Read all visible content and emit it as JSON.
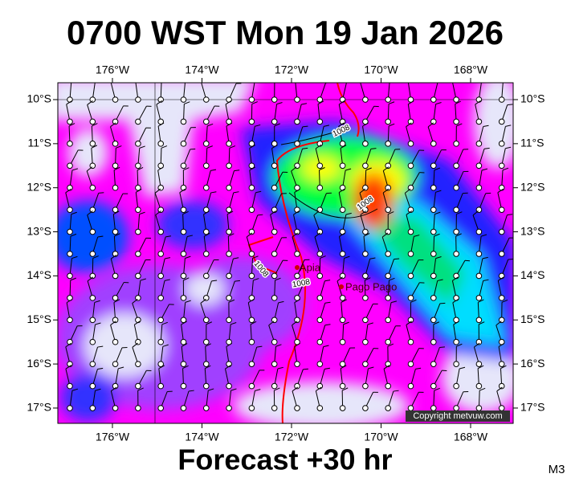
{
  "header": {
    "title": "0700 WST Mon 19 Jan 2026"
  },
  "footer": {
    "forecast": "Forecast +30 hr",
    "model": "M3"
  },
  "map": {
    "lon_labels": [
      "176°W",
      "174°W",
      "172°W",
      "170°W",
      "168°W"
    ],
    "lat_labels": [
      "10°S",
      "11°S",
      "12°S",
      "13°S",
      "14°S",
      "15°S",
      "16°S",
      "17°S"
    ],
    "places": [
      "Apia",
      "Pago Pago"
    ],
    "contour_labels": [
      "1008",
      "1008",
      "1008",
      "1008"
    ],
    "copyright": "Copyright metvuw.com"
  }
}
